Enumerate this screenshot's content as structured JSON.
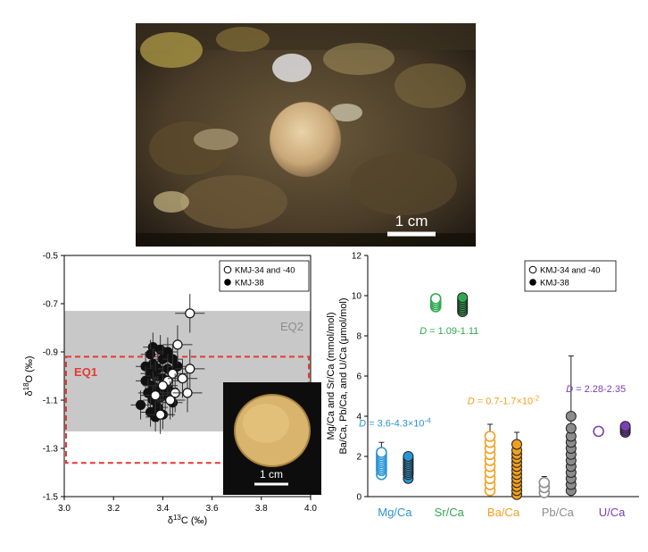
{
  "photo": {
    "scale_label": "1 cm"
  },
  "inset": {
    "scale_label": "1 cm"
  },
  "colors": {
    "mg": "#2a95d6",
    "sr": "#2fa84f",
    "ba": "#f0a020",
    "pb": "#8c8c8c",
    "u": "#7a3fb5",
    "eq1": "#e53935",
    "eq2_band": "#c8c8c8"
  },
  "chart_data": [
    {
      "type": "scatter",
      "xlabel": "δ13C (‰)",
      "ylabel": "δ18O (‰)",
      "xlim": [
        3.0,
        4.0
      ],
      "ylim": [
        -1.5,
        -0.5
      ],
      "xticks": [
        "3.0",
        "3.2",
        "3.4",
        "3.6",
        "3.8",
        "4.0"
      ],
      "yticks": [
        "-0.5",
        "-0.7",
        "-0.9",
        "-1.1",
        "-1.3",
        "-1.5"
      ],
      "eq2": {
        "label": "EQ2",
        "y": [
          -1.23,
          -0.73
        ]
      },
      "eq1": {
        "label": "EQ1",
        "x": [
          3.0,
          4.0
        ],
        "y": [
          -1.36,
          -0.92
        ]
      },
      "legend": {
        "placement": "top-right",
        "open": "KMJ-34 and -40",
        "filled": "KMJ-38"
      },
      "series": [
        {
          "name": "KMJ-34 and -40",
          "fill": "open",
          "points": [
            [
              3.51,
              -0.74
            ],
            [
              3.46,
              -0.87
            ],
            [
              3.51,
              -0.97
            ],
            [
              3.44,
              -0.99
            ],
            [
              3.42,
              -1.02
            ],
            [
              3.48,
              -1.01
            ],
            [
              3.4,
              -1.04
            ],
            [
              3.45,
              -1.07
            ],
            [
              3.5,
              -1.07
            ],
            [
              3.37,
              -1.08
            ],
            [
              3.43,
              -1.1
            ],
            [
              3.39,
              -1.16
            ]
          ]
        },
        {
          "name": "KMJ-38",
          "fill": "filled",
          "points": [
            [
              3.36,
              -0.88
            ],
            [
              3.39,
              -0.89
            ],
            [
              3.42,
              -0.9
            ],
            [
              3.35,
              -0.91
            ],
            [
              3.4,
              -0.93
            ],
            [
              3.44,
              -0.93
            ],
            [
              3.36,
              -0.95
            ],
            [
              3.33,
              -0.96
            ],
            [
              3.38,
              -0.97
            ],
            [
              3.42,
              -0.97
            ],
            [
              3.46,
              -0.96
            ],
            [
              3.35,
              -0.99
            ],
            [
              3.37,
              -1.0
            ],
            [
              3.33,
              -1.02
            ],
            [
              3.4,
              -1.01
            ],
            [
              3.36,
              -1.04
            ],
            [
              3.42,
              -1.05
            ],
            [
              3.38,
              -1.06
            ],
            [
              3.34,
              -1.07
            ],
            [
              3.41,
              -1.08
            ],
            [
              3.39,
              -1.09
            ],
            [
              3.36,
              -1.1
            ],
            [
              3.44,
              -1.11
            ],
            [
              3.31,
              -1.12
            ],
            [
              3.38,
              -1.13
            ],
            [
              3.35,
              -1.15
            ],
            [
              3.4,
              -1.16
            ],
            [
              3.37,
              -1.17
            ]
          ]
        }
      ]
    },
    {
      "type": "scatter",
      "ylabel_line1": "Mg/Ca and Sr/Ca (mmol/mol)",
      "ylabel_line2": "Ba/Ca, Pb/Ca, and U/Ca (μmol/mol)",
      "ylim": [
        0,
        12
      ],
      "yticks": [
        "0",
        "2",
        "4",
        "6",
        "8",
        "10",
        "12"
      ],
      "categories": [
        "Mg/Ca",
        "Sr/Ca",
        "Ba/Ca",
        "Pb/Ca",
        "U/Ca"
      ],
      "legend": {
        "placement": "top-right",
        "open": "KMJ-34 and -40",
        "filled": "KMJ-38"
      },
      "annotations": [
        {
          "category": "Mg/Ca",
          "prefix": "D",
          "text": " = 3.6-4.3×10",
          "sup": "-4",
          "y": 3.5
        },
        {
          "category": "Sr/Ca",
          "prefix": "D",
          "text": " = 1.09-1.11",
          "sup": "",
          "y": 8.1
        },
        {
          "category": "Ba/Ca",
          "prefix": "D",
          "text": " = 0.7-1.7×10",
          "sup": "-2",
          "y": 4.6
        },
        {
          "category": "U/Ca",
          "prefix": "D",
          "text": " = 2.28-2.35",
          "sup": "",
          "y": 5.2
        }
      ],
      "groups": [
        {
          "category": "Mg/Ca",
          "color_key": "mg",
          "open": [
            1.1,
            1.3,
            1.4,
            1.5,
            1.6,
            1.7,
            1.8,
            1.9,
            2.0,
            2.1,
            2.2
          ],
          "filled": [
            0.9,
            1.1,
            1.2,
            1.3,
            1.4,
            1.5,
            1.6,
            1.7,
            1.8,
            1.9,
            2.0
          ],
          "open_err": [
            1.0,
            2.7
          ],
          "filled_err": [
            0.9,
            2.2
          ]
        },
        {
          "category": "Sr/Ca",
          "color_key": "sr",
          "open": [
            9.45,
            9.55,
            9.65,
            9.75,
            9.85
          ],
          "filled": [
            9.2,
            9.3,
            9.4,
            9.5,
            9.6,
            9.7,
            9.8,
            9.9
          ],
          "open_err": [
            9.3,
            10.0
          ],
          "filled_err": [
            9.0,
            10.1
          ]
        },
        {
          "category": "Ba/Ca",
          "color_key": "ba",
          "open": [
            0.3,
            0.6,
            0.9,
            1.2,
            1.5,
            1.8,
            2.1,
            2.4,
            2.7,
            3.0
          ],
          "filled": [
            0.1,
            0.3,
            0.5,
            0.7,
            0.9,
            1.1,
            1.3,
            1.5,
            1.7,
            1.9,
            2.1,
            2.3,
            2.6
          ],
          "open_err": [
            0.1,
            3.6
          ],
          "filled_err": [
            0.0,
            3.2
          ]
        },
        {
          "category": "Pb/Ca",
          "color_key": "pb",
          "open": [
            0.2,
            0.45,
            0.7
          ],
          "filled": [
            0.3,
            0.6,
            0.9,
            1.2,
            1.5,
            1.8,
            2.1,
            2.4,
            2.7,
            3.0,
            3.4,
            4.0
          ],
          "open_err": [
            0.0,
            1.0
          ],
          "filled_err": [
            0.0,
            7.0
          ]
        },
        {
          "category": "U/Ca",
          "color_key": "u",
          "open": [
            3.25
          ],
          "filled": [
            3.2,
            3.3,
            3.4,
            3.5
          ],
          "open_err": [
            3.1,
            3.4
          ],
          "filled_err": [
            3.1,
            3.6
          ]
        }
      ]
    }
  ]
}
